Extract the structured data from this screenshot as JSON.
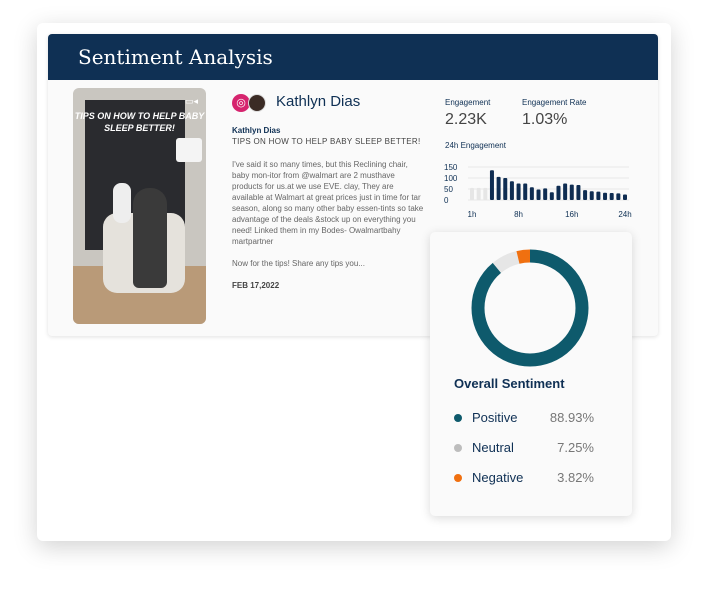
{
  "header": {
    "title": "Sentiment Analysis"
  },
  "post": {
    "image_text": "TIPS ON HOW TO HELP BABY SLEEP BETTER!",
    "author": "Kathlyn Dias",
    "handle": "Kathlyn Dias",
    "title": "TIPS ON HOW TO HELP BABY SLEEP BETTER!",
    "body": "I've said it so many times, but this Reclining chair, baby mon-itor from @walmart are 2 musthave products for us.at we use EVE. clay, They are available at Walmart at great prices just in time for tar season, along so many other baby essen-tints so take advantage of the deals &stock up on everything you need! Linked them in my Bodes- Owalmartbahy martpartner",
    "more": "Now for the tips! Share any tips you...",
    "date": "FEB 17,2022"
  },
  "metrics": {
    "engagement_label": "Engagement",
    "engagement_value": "2.23K",
    "rate_label": "Engagement Rate",
    "rate_value": "1.03%"
  },
  "chart_data": {
    "type": "bar",
    "title": "24h Engagement",
    "x": [
      1,
      2,
      3,
      4,
      5,
      6,
      7,
      8,
      9,
      10,
      11,
      12,
      13,
      14,
      15,
      16,
      17,
      18,
      19,
      20,
      21,
      22,
      23,
      24
    ],
    "values": [
      55,
      55,
      55,
      135,
      105,
      100,
      85,
      75,
      75,
      58,
      48,
      53,
      35,
      65,
      75,
      70,
      68,
      45,
      40,
      38,
      33,
      32,
      30,
      25
    ],
    "highlighted_from": 4,
    "yticks": [
      "150",
      "100",
      "50",
      "0"
    ],
    "ylim": [
      0,
      150
    ],
    "xticks": [
      {
        "h": 1,
        "label": "1h"
      },
      {
        "h": 8,
        "label": "8h"
      },
      {
        "h": 16,
        "label": "16h"
      },
      {
        "h": 24,
        "label": "24h"
      }
    ]
  },
  "sentiment": {
    "title": "Overall Sentiment",
    "items": [
      {
        "label": "Positive",
        "value": "88.93%",
        "pct": 88.93,
        "color": "#0e5a6c"
      },
      {
        "label": "Neutral",
        "value": "7.25%",
        "pct": 7.25,
        "color": "#e6e6e6"
      },
      {
        "label": "Negative",
        "value": "3.82%",
        "pct": 3.82,
        "color": "#f07010"
      }
    ],
    "legend_neutral_color": "#bdbdbd"
  }
}
